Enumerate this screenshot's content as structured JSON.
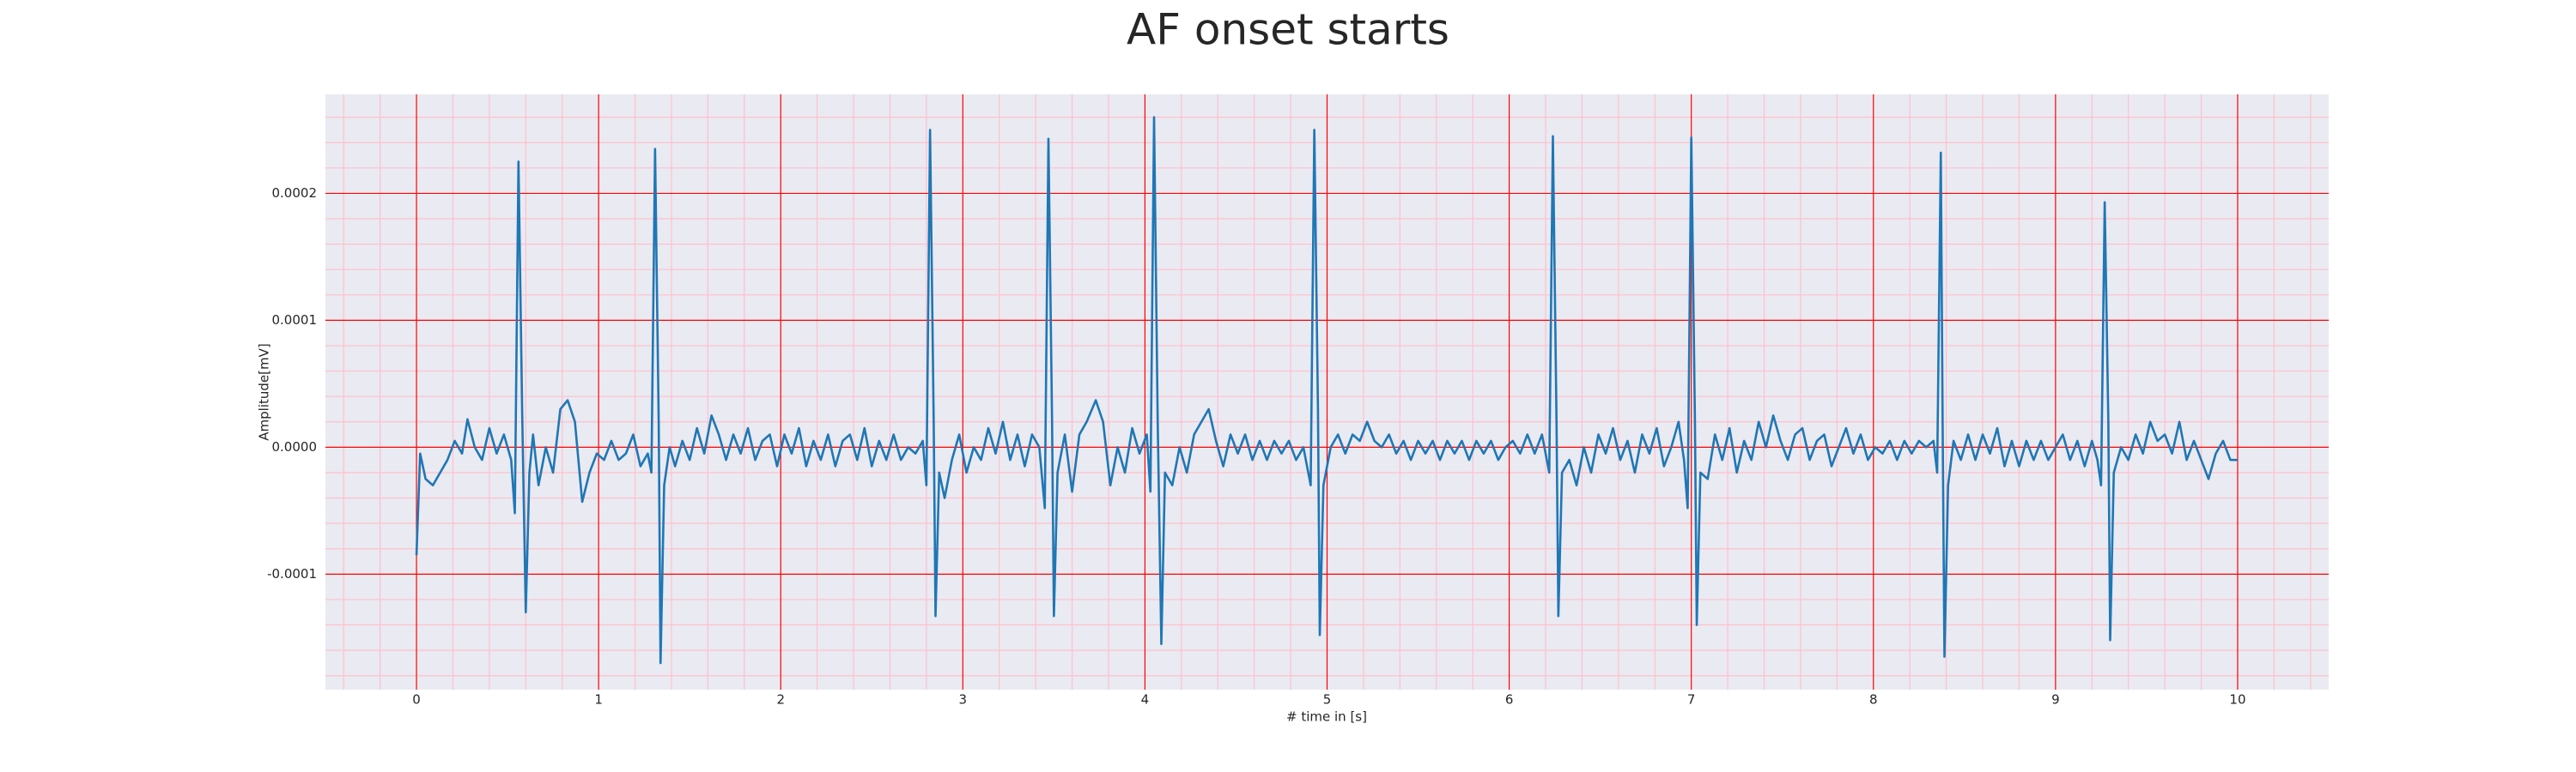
{
  "chart_data": {
    "type": "line",
    "title": "AF onset starts",
    "xlabel": "# time in [s]",
    "ylabel": "Amplitude[mV]",
    "color": "#1f77b4",
    "background": "#eaeaf2",
    "grid": true,
    "grid_color": "#ff0000",
    "minor_grid_color": "#ffc0cb",
    "xlim": [
      -0.5,
      10.5
    ],
    "ylim": [
      -0.000191,
      0.000278
    ],
    "xticks": [
      0,
      1,
      2,
      3,
      4,
      5,
      6,
      7,
      8,
      9,
      10
    ],
    "yticks": [
      -0.0001,
      {
        "value": 0,
        "label": "0.0000"
      },
      0.0001,
      0.0002
    ],
    "xminorticks": [
      -0.4,
      -0.2,
      0.2,
      0.4,
      0.6,
      0.8,
      1.2,
      1.4,
      1.6,
      1.8,
      2.2,
      2.4,
      2.6,
      2.8,
      3.2,
      3.4,
      3.6,
      3.8,
      4.2,
      4.4,
      4.6,
      4.8,
      5.2,
      5.4,
      5.6,
      5.8,
      6.2,
      6.4,
      6.6,
      6.8,
      7.2,
      7.4,
      7.6,
      7.8,
      8.2,
      8.4,
      8.6,
      8.8,
      9.2,
      9.4,
      9.6,
      9.8,
      10.2,
      10.4
    ],
    "yminorticks": [
      -0.00018,
      -0.00016,
      -0.00014,
      -0.00012,
      -8e-05,
      -6e-05,
      -4e-05,
      -2e-05,
      2e-05,
      4e-05,
      6e-05,
      8e-05,
      0.00012,
      0.00014,
      0.00016,
      0.00018,
      0.00022,
      0.00024,
      0.00026
    ],
    "x": [
      0.0,
      0.02,
      0.05,
      0.09,
      0.13,
      0.17,
      0.21,
      0.25,
      0.28,
      0.32,
      0.36,
      0.4,
      0.44,
      0.48,
      0.52,
      0.54,
      0.56,
      0.58,
      0.6,
      0.62,
      0.64,
      0.67,
      0.71,
      0.75,
      0.79,
      0.83,
      0.87,
      0.91,
      0.95,
      0.99,
      1.03,
      1.07,
      1.11,
      1.15,
      1.19,
      1.23,
      1.27,
      1.29,
      1.31,
      1.33,
      1.34,
      1.36,
      1.39,
      1.42,
      1.46,
      1.5,
      1.54,
      1.58,
      1.62,
      1.66,
      1.7,
      1.74,
      1.78,
      1.82,
      1.86,
      1.9,
      1.94,
      1.98,
      2.02,
      2.06,
      2.1,
      2.14,
      2.18,
      2.22,
      2.26,
      2.3,
      2.34,
      2.38,
      2.42,
      2.46,
      2.5,
      2.54,
      2.58,
      2.62,
      2.66,
      2.7,
      2.74,
      2.78,
      2.8,
      2.82,
      2.84,
      2.85,
      2.87,
      2.9,
      2.94,
      2.98,
      3.02,
      3.06,
      3.1,
      3.14,
      3.18,
      3.22,
      3.26,
      3.3,
      3.34,
      3.38,
      3.42,
      3.45,
      3.47,
      3.49,
      3.5,
      3.52,
      3.56,
      3.6,
      3.64,
      3.68,
      3.73,
      3.77,
      3.81,
      3.85,
      3.89,
      3.93,
      3.97,
      4.01,
      4.03,
      4.05,
      4.07,
      4.09,
      4.11,
      4.15,
      4.19,
      4.23,
      4.27,
      4.31,
      4.35,
      4.39,
      4.43,
      4.47,
      4.51,
      4.55,
      4.59,
      4.63,
      4.67,
      4.71,
      4.75,
      4.79,
      4.83,
      4.87,
      4.91,
      4.93,
      4.95,
      4.96,
      4.98,
      5.02,
      5.06,
      5.1,
      5.14,
      5.18,
      5.22,
      5.26,
      5.3,
      5.34,
      5.38,
      5.42,
      5.46,
      5.5,
      5.54,
      5.58,
      5.62,
      5.66,
      5.7,
      5.74,
      5.78,
      5.82,
      5.86,
      5.9,
      5.94,
      5.98,
      6.02,
      6.06,
      6.1,
      6.14,
      6.18,
      6.22,
      6.24,
      6.26,
      6.27,
      6.29,
      6.33,
      6.37,
      6.41,
      6.45,
      6.49,
      6.53,
      6.57,
      6.61,
      6.65,
      6.69,
      6.73,
      6.77,
      6.81,
      6.85,
      6.89,
      6.93,
      6.96,
      6.98,
      7.0,
      7.02,
      7.03,
      7.05,
      7.09,
      7.13,
      7.17,
      7.21,
      7.25,
      7.29,
      7.33,
      7.37,
      7.41,
      7.45,
      7.49,
      7.53,
      7.57,
      7.61,
      7.65,
      7.69,
      7.73,
      7.77,
      7.81,
      7.85,
      7.89,
      7.93,
      7.97,
      8.01,
      8.05,
      8.09,
      8.13,
      8.17,
      8.21,
      8.25,
      8.29,
      8.33,
      8.35,
      8.37,
      8.38,
      8.39,
      8.41,
      8.44,
      8.48,
      8.52,
      8.56,
      8.6,
      8.64,
      8.68,
      8.72,
      8.76,
      8.8,
      8.84,
      8.88,
      8.92,
      8.96,
      9.0,
      9.04,
      9.08,
      9.12,
      9.16,
      9.2,
      9.23,
      9.25,
      9.27,
      9.29,
      9.3,
      9.32,
      9.36,
      9.4,
      9.44,
      9.48,
      9.52,
      9.56,
      9.6,
      9.64,
      9.68,
      9.72,
      9.76,
      9.8,
      9.84,
      9.88,
      9.92,
      9.96,
      10.0
    ],
    "values": [
      -8.5e-05,
      -5e-06,
      -2.5e-05,
      -3e-05,
      -2e-05,
      -1e-05,
      5e-06,
      -5e-06,
      2.2e-05,
      0,
      -1e-05,
      1.5e-05,
      -5e-06,
      1e-05,
      -1e-05,
      -5.2e-05,
      0.000225,
      3e-05,
      -0.00013,
      -2e-05,
      1e-05,
      -3e-05,
      0,
      -2e-05,
      3e-05,
      3.7e-05,
      2e-05,
      -4.3e-05,
      -2e-05,
      -5e-06,
      -1e-05,
      5e-06,
      -1e-05,
      -5e-06,
      1e-05,
      -1.5e-05,
      -5e-06,
      -2e-05,
      0.000235,
      2e-05,
      -0.00017,
      -3e-05,
      0,
      -1.5e-05,
      5e-06,
      -1e-05,
      1.5e-05,
      -5e-06,
      2.5e-05,
      1e-05,
      -1e-05,
      1e-05,
      -5e-06,
      1.5e-05,
      -1e-05,
      5e-06,
      1e-05,
      -1.5e-05,
      1e-05,
      -5e-06,
      1.5e-05,
      -1.5e-05,
      5e-06,
      -1e-05,
      1e-05,
      -1.5e-05,
      5e-06,
      1e-05,
      -1e-05,
      1.5e-05,
      -1.5e-05,
      5e-06,
      -1e-05,
      1e-05,
      -1e-05,
      0,
      -5e-06,
      5e-06,
      -3e-05,
      0.00025,
      2e-05,
      -0.000133,
      -2e-05,
      -4e-05,
      -1e-05,
      1e-05,
      -2e-05,
      0,
      -1e-05,
      1.5e-05,
      -5e-06,
      2e-05,
      -1e-05,
      1e-05,
      -1.5e-05,
      1e-05,
      0,
      -4.8e-05,
      0.000243,
      2e-05,
      -0.000133,
      -2e-05,
      1e-05,
      -3.5e-05,
      1e-05,
      2e-05,
      3.7e-05,
      2e-05,
      -3e-05,
      0,
      -2e-05,
      1.5e-05,
      -5e-06,
      1e-05,
      -3.5e-05,
      0.00026,
      2e-05,
      -0.000155,
      -2e-05,
      -3e-05,
      0,
      -2e-05,
      1e-05,
      2e-05,
      3e-05,
      5e-06,
      -1.5e-05,
      1e-05,
      -5e-06,
      1e-05,
      -1e-05,
      5e-06,
      -1e-05,
      5e-06,
      -5e-06,
      5e-06,
      -1e-05,
      0,
      -3e-05,
      0.00025,
      3e-05,
      -0.000148,
      -3e-05,
      0,
      1e-05,
      -5e-06,
      1e-05,
      5e-06,
      2e-05,
      5e-06,
      0,
      1e-05,
      -5e-06,
      5e-06,
      -1e-05,
      5e-06,
      -5e-06,
      5e-06,
      -1e-05,
      5e-06,
      -5e-06,
      5e-06,
      -1e-05,
      5e-06,
      -5e-06,
      5e-06,
      -1e-05,
      0,
      5e-06,
      -5e-06,
      1e-05,
      -5e-06,
      1e-05,
      -2e-05,
      0.000245,
      2e-05,
      -0.000133,
      -2e-05,
      -1e-05,
      -3e-05,
      0,
      -2e-05,
      1e-05,
      -5e-06,
      1.5e-05,
      -1e-05,
      5e-06,
      -2e-05,
      1e-05,
      -5e-06,
      1.5e-05,
      -1.5e-05,
      0,
      2e-05,
      -1e-05,
      -4.8e-05,
      0.000244,
      2e-05,
      -0.00014,
      -2e-05,
      -2.5e-05,
      1e-05,
      -1e-05,
      1.5e-05,
      -2e-05,
      5e-06,
      -1e-05,
      2e-05,
      0,
      2.5e-05,
      5e-06,
      -1e-05,
      1e-05,
      1.5e-05,
      -1e-05,
      5e-06,
      1e-05,
      -1.5e-05,
      0,
      1.5e-05,
      -5e-06,
      1e-05,
      -1e-05,
      0,
      -5e-06,
      5e-06,
      -1e-05,
      5e-06,
      -5e-06,
      5e-06,
      0,
      5e-06,
      -2e-05,
      0.000232,
      2e-05,
      -0.000165,
      -3e-05,
      5e-06,
      -1e-05,
      1e-05,
      -1e-05,
      1e-05,
      -5e-06,
      1.5e-05,
      -1.5e-05,
      5e-06,
      -1.5e-05,
      5e-06,
      -1e-05,
      5e-06,
      -1e-05,
      0,
      1e-05,
      -1e-05,
      5e-06,
      -1.5e-05,
      5e-06,
      -1e-05,
      -3e-05,
      0.000193,
      2e-05,
      -0.000152,
      -2e-05,
      0,
      -1e-05,
      1e-05,
      -5e-06,
      2e-05,
      5e-06,
      1e-05,
      -5e-06,
      2e-05,
      -1e-05,
      5e-06,
      -1e-05,
      -2.5e-05,
      -5e-06,
      5e-06,
      -1e-05,
      -1e-05
    ]
  }
}
